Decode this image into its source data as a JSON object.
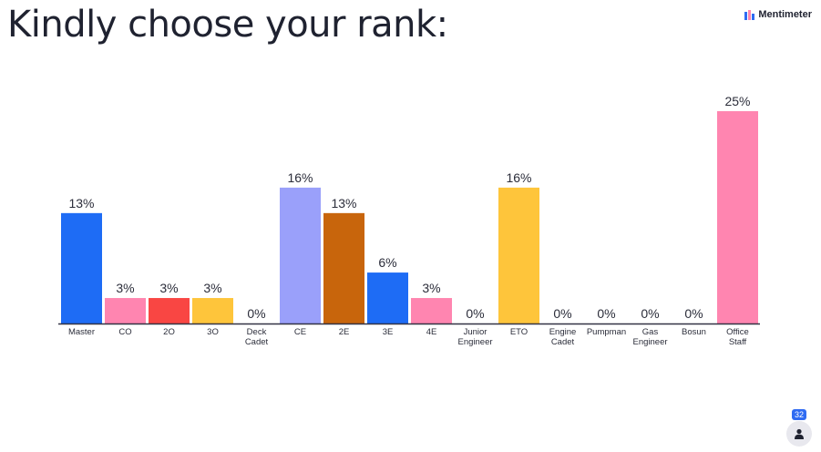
{
  "title": "Kindly choose your rank:",
  "brand": {
    "name": "Mentimeter",
    "icon": "mentimeter-logo-icon",
    "color": "#2f6bf2"
  },
  "participants": {
    "count": "32",
    "icon": "person-icon",
    "badge_color": "#2f6bf2"
  },
  "chart_data": {
    "type": "bar",
    "title": "",
    "xlabel": "",
    "ylabel": "",
    "ylim": [
      0,
      25
    ],
    "grid": false,
    "legend": "none",
    "value_suffix": "%",
    "categories": [
      [
        "Master"
      ],
      [
        "CO"
      ],
      [
        "2O"
      ],
      [
        "3O"
      ],
      [
        "Deck",
        "Cadet"
      ],
      [
        "CE"
      ],
      [
        "2E"
      ],
      [
        "3E"
      ],
      [
        "4E"
      ],
      [
        "Junior",
        "Engineer"
      ],
      [
        "ETO"
      ],
      [
        "Engine",
        "Cadet"
      ],
      [
        "Pumpman"
      ],
      [
        "Gas",
        "Engineer"
      ],
      [
        "Bosun"
      ],
      [
        "Office",
        "Staff"
      ]
    ],
    "values": [
      13,
      3,
      3,
      3,
      0,
      16,
      13,
      6,
      3,
      0,
      16,
      0,
      0,
      0,
      0,
      25
    ],
    "value_labels": [
      "13%",
      "3%",
      "3%",
      "3%",
      "0%",
      "16%",
      "13%",
      "6%",
      "3%",
      "0%",
      "16%",
      "0%",
      "0%",
      "0%",
      "0%",
      "25%"
    ],
    "colors": [
      "#1e6cf5",
      "#ff85b0",
      "#f94643",
      "#fec53b",
      "#9aa0fa",
      "#9aa0fa",
      "#c8650c",
      "#1e6cf5",
      "#ff85b0",
      "#9aa0fa",
      "#fec53b",
      "#9aa0fa",
      "#9aa0fa",
      "#9aa0fa",
      "#9aa0fa",
      "#ff85b0"
    ],
    "baseline_color": "#333344"
  }
}
